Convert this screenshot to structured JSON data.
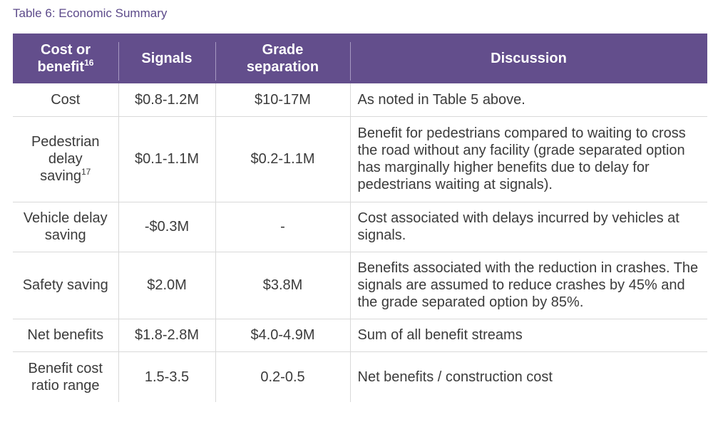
{
  "caption": "Table 6: Economic Summary",
  "headers": {
    "col1": "Cost or benefit",
    "col1_sup": "16",
    "col2": "Signals",
    "col3": "Grade separation",
    "col4": "Discussion"
  },
  "rows": [
    {
      "label": "Cost",
      "label_sup": "",
      "signals": "$0.8-1.2M",
      "grade": "$10-17M",
      "discussion": "As noted in Table 5 above."
    },
    {
      "label": "Pedestrian delay saving",
      "label_sup": "17",
      "signals": "$0.1-1.1M",
      "grade": "$0.2-1.1M",
      "discussion": "Benefit for pedestrians compared to waiting to cross the road without any facility (grade separated option has marginally higher benefits due to delay for pedestrians waiting at signals)."
    },
    {
      "label": "Vehicle delay saving",
      "label_sup": "",
      "signals": "-$0.3M",
      "grade": "-",
      "discussion": "Cost associated with delays incurred by vehicles at signals."
    },
    {
      "label": "Safety saving",
      "label_sup": "",
      "signals": "$2.0M",
      "grade": "$3.8M",
      "discussion": "Benefits associated with the reduction in crashes. The signals are assumed to reduce crashes by 45% and the grade separated option by 85%."
    },
    {
      "label": "Net benefits",
      "label_sup": "",
      "signals": "$1.8-2.8M",
      "grade": "$4.0-4.9M",
      "discussion": "Sum of all benefit streams"
    },
    {
      "label": "Benefit cost ratio range",
      "label_sup": "",
      "signals": "1.5-3.5",
      "grade": "0.2-0.5",
      "discussion": "Net benefits / construction cost"
    }
  ],
  "colors": {
    "header_bg": "#634e8c",
    "caption": "#5c4a8a",
    "grid": "#d9d9d9"
  }
}
